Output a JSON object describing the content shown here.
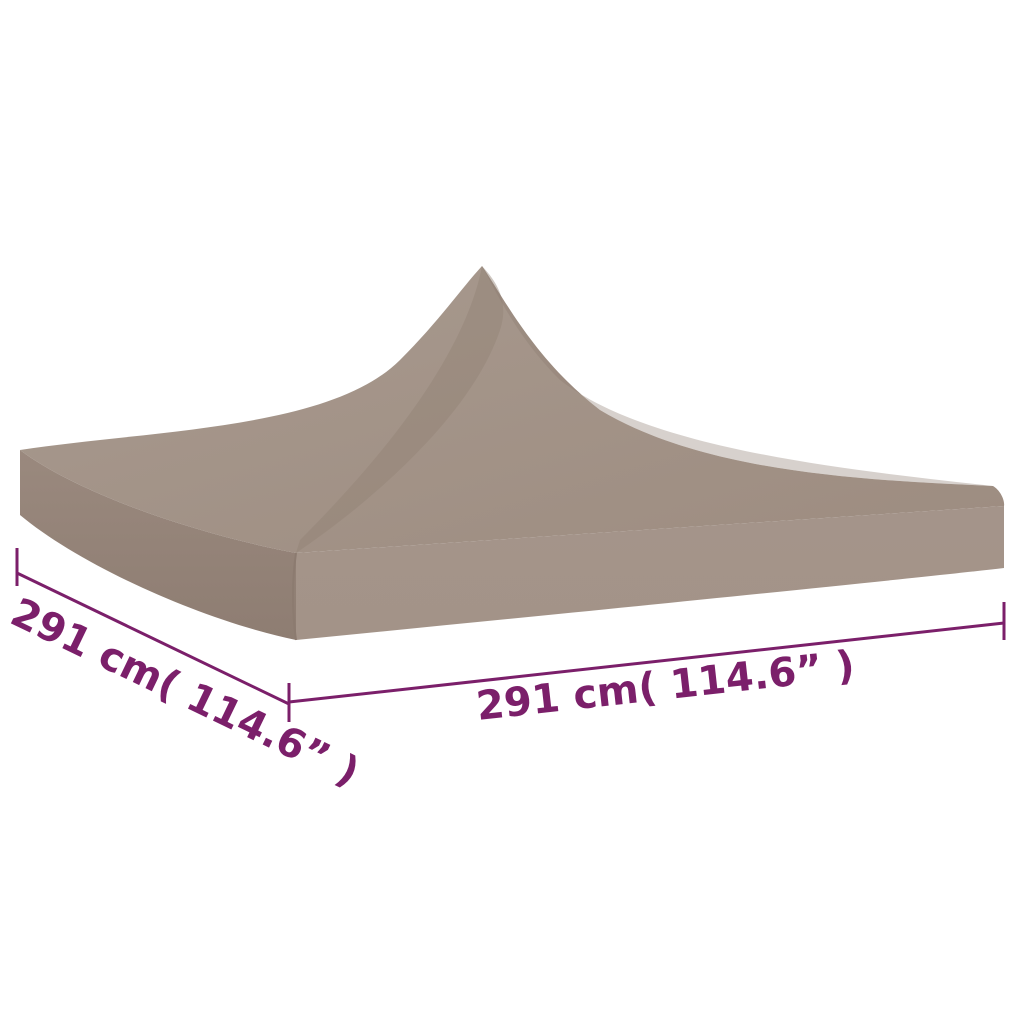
{
  "product": {
    "name": "gazebo-roof-canopy",
    "fabric_color": "#a6968b",
    "fabric_shadow": "#8f7e73",
    "fabric_highlight": "#b3a498"
  },
  "dimensions": {
    "line_color": "#7b1f6a",
    "text_color": "#7b1f6a",
    "width_label": "291 cm( 114.6”  )",
    "depth_label": "291 cm( 114.6”  )"
  }
}
